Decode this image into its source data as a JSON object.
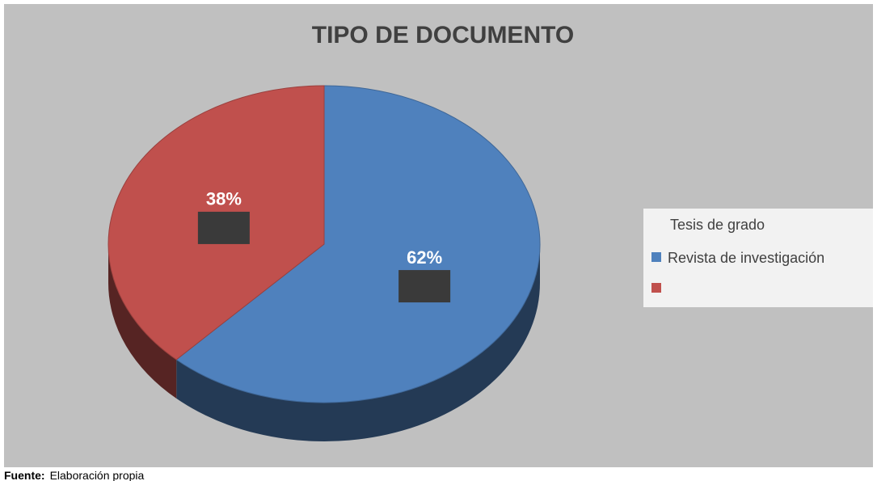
{
  "chart_data": {
    "type": "pie",
    "title": "TIPO DE DOCUMENTO",
    "legend_title": "Tesis de grado",
    "categories": [
      "Revista de investigación",
      null
    ],
    "values": [
      62,
      38
    ],
    "value_labels": [
      "62%",
      "38%"
    ],
    "colors": [
      "#4f81bd",
      "#c0504d"
    ],
    "legend": "right"
  },
  "source": {
    "label": "Fuente:",
    "text": "Elaboración propia"
  }
}
